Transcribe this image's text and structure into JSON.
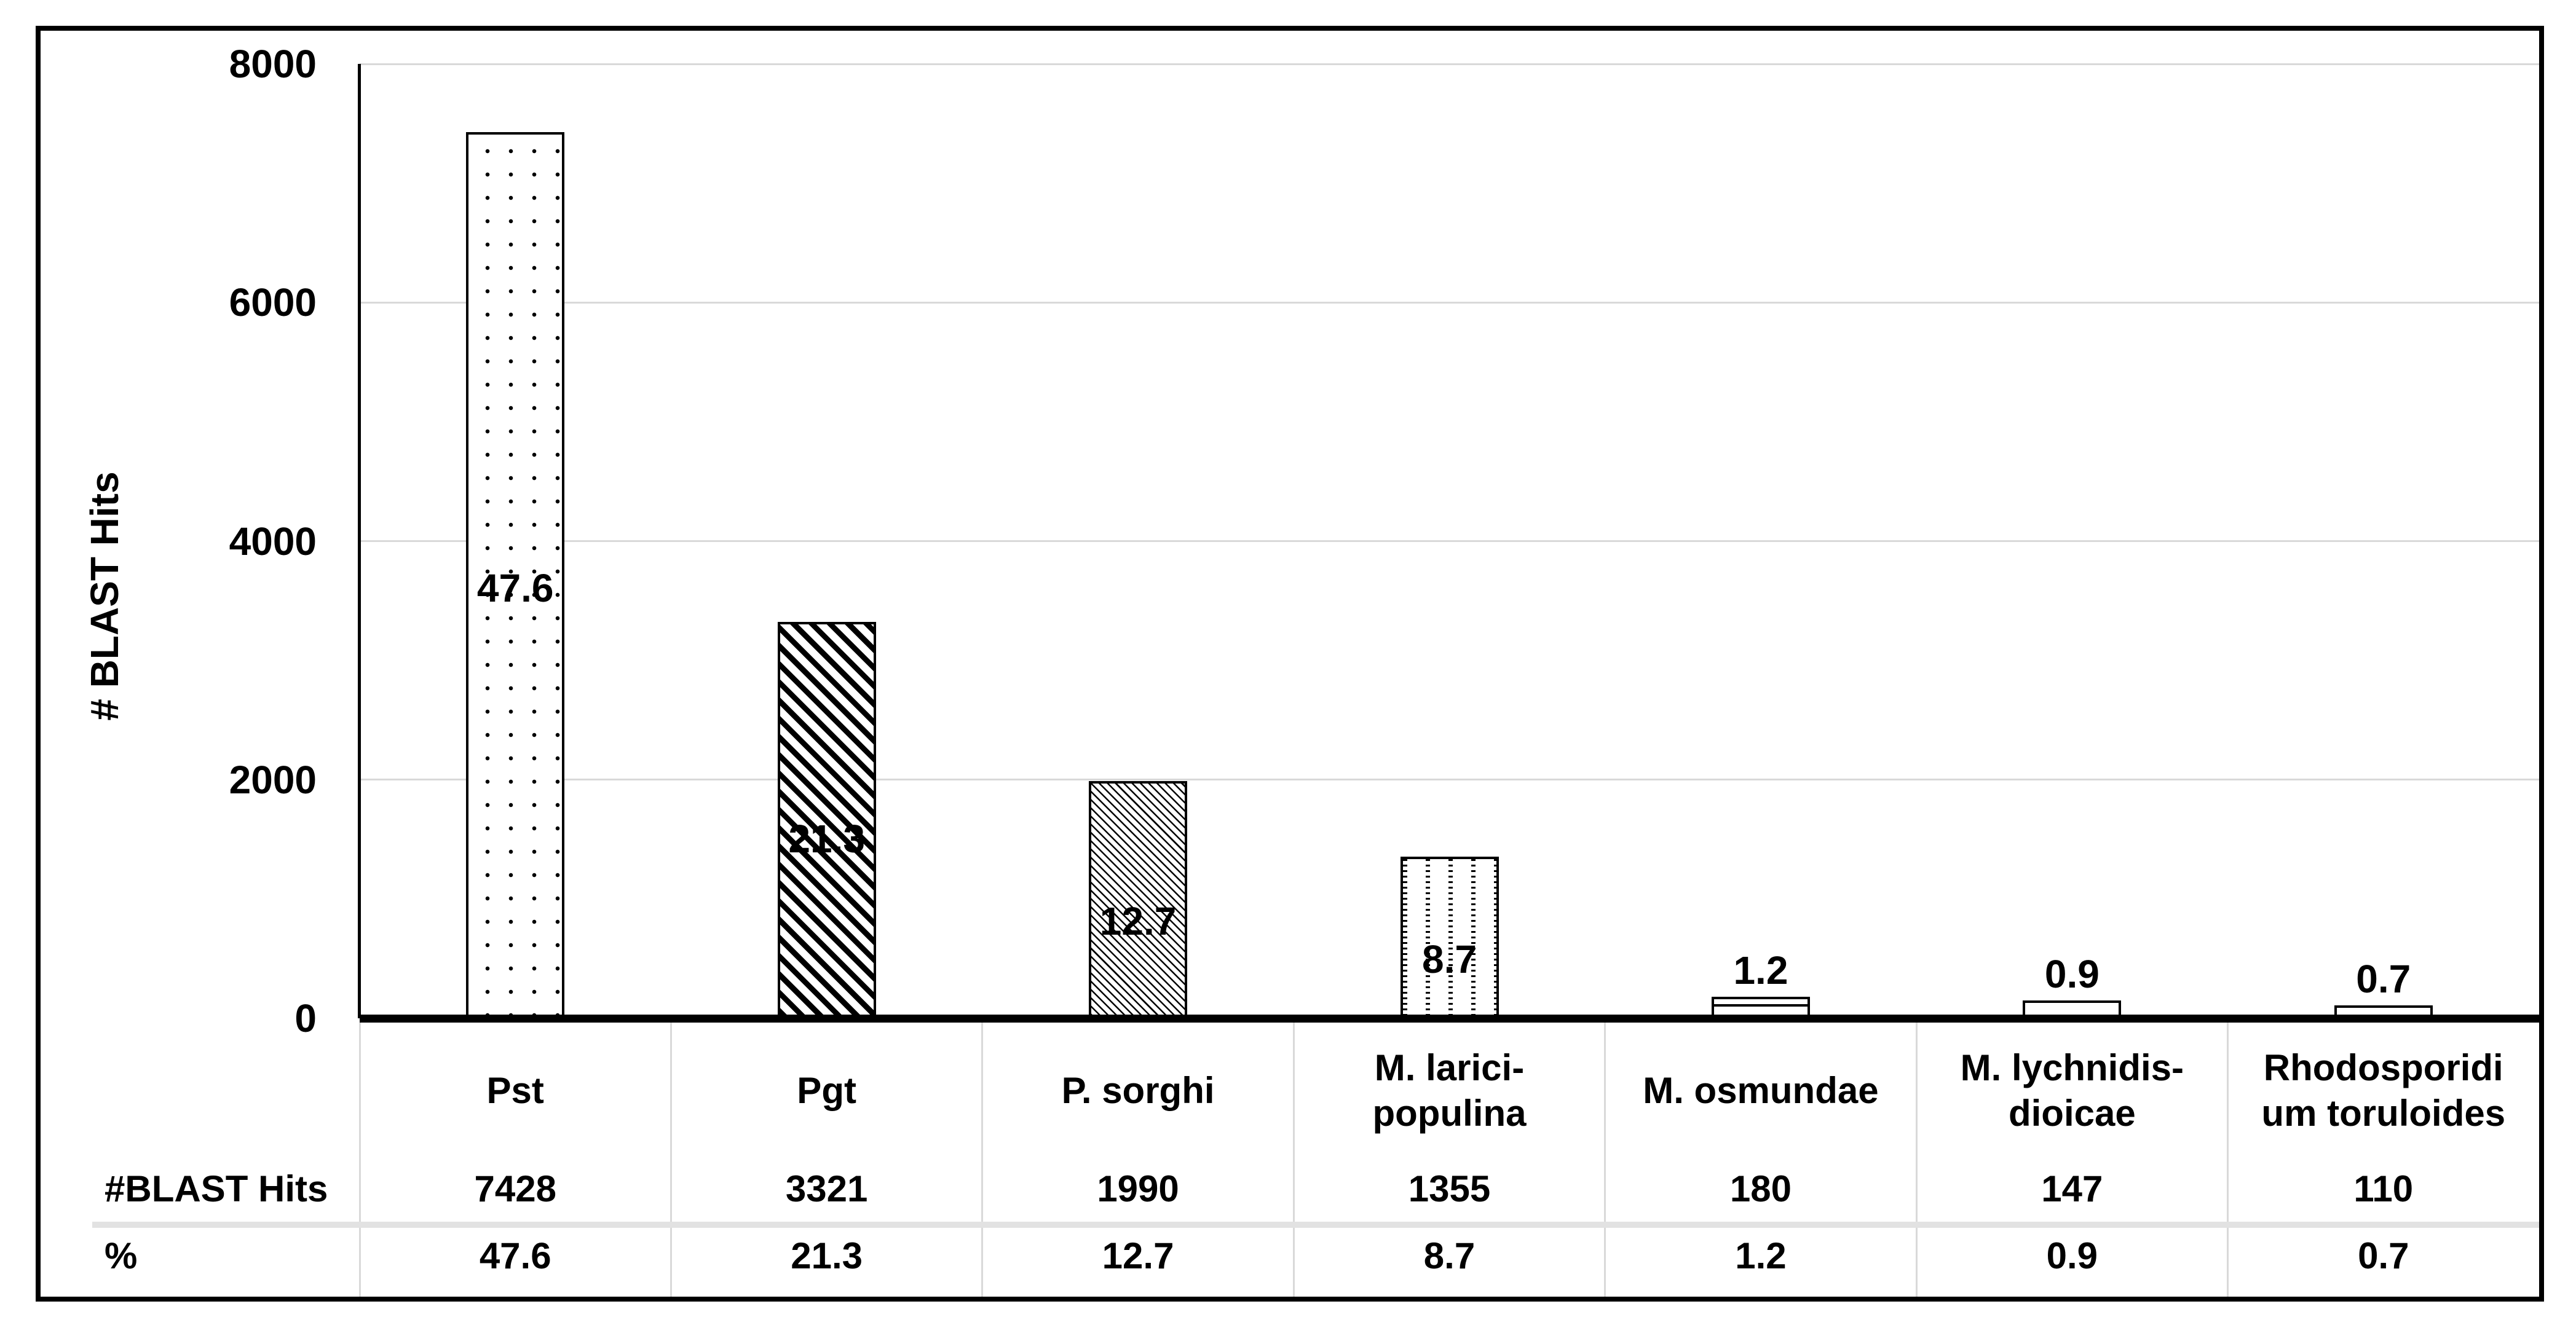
{
  "chart_data": {
    "type": "bar",
    "title": "",
    "ylabel": "# BLAST Hits",
    "xlabel": "",
    "ylim": [
      0,
      8000
    ],
    "ytick_step": 2000,
    "yticks": [
      "8000",
      "6000",
      "4000",
      "2000",
      "0"
    ],
    "grid": "horizontal",
    "legend": "none",
    "categories": [
      "Pst",
      "Pgt",
      "P. sorghi",
      "M. larici-populina",
      "M. osmundae",
      "M. lychnidis-dioicae",
      "Rhodosporidium toruloides"
    ],
    "category_display_lines": [
      [
        "Pst"
      ],
      [
        "Pgt"
      ],
      [
        "P. sorghi"
      ],
      [
        "M. larici-",
        "populina"
      ],
      [
        "M. osmundae"
      ],
      [
        "M. lychnidis-",
        "dioicae"
      ],
      [
        "Rhodosporidi",
        "um toruloides"
      ]
    ],
    "series": [
      {
        "name": "#BLAST Hits",
        "axis": "primary",
        "values": [
          7428,
          3321,
          1990,
          1355,
          180,
          147,
          110
        ]
      },
      {
        "name": "%",
        "axis": "secondary",
        "values": [
          47.6,
          21.3,
          12.7,
          8.7,
          1.2,
          0.9,
          0.7
        ]
      }
    ],
    "bar_percent_labels": [
      "47.6",
      "21.3",
      "12.7",
      "8.7",
      "1.2",
      "0.9",
      "0.7"
    ],
    "bar_patterns": [
      "dots",
      "diagonal-wide",
      "diagonal-thin",
      "vertical-dashes",
      "horizontal-lines",
      "plain",
      "plain"
    ],
    "data_table": {
      "row_labels": [
        "#BLAST Hits",
        "%"
      ],
      "rows": [
        [
          "7428",
          "3321",
          "1990",
          "1355",
          "180",
          "147",
          "110"
        ],
        [
          "47.6",
          "21.3",
          "12.7",
          "8.7",
          "1.2",
          "0.9",
          "0.7"
        ]
      ]
    },
    "colors": {
      "bar_fill": "#ffffff",
      "bar_border": "#000000",
      "gridline": "#d9d9d9",
      "axis_line": "#000000",
      "text": "#000000",
      "table_divider": "#e2e2e2",
      "figure_border": "#000000"
    }
  }
}
